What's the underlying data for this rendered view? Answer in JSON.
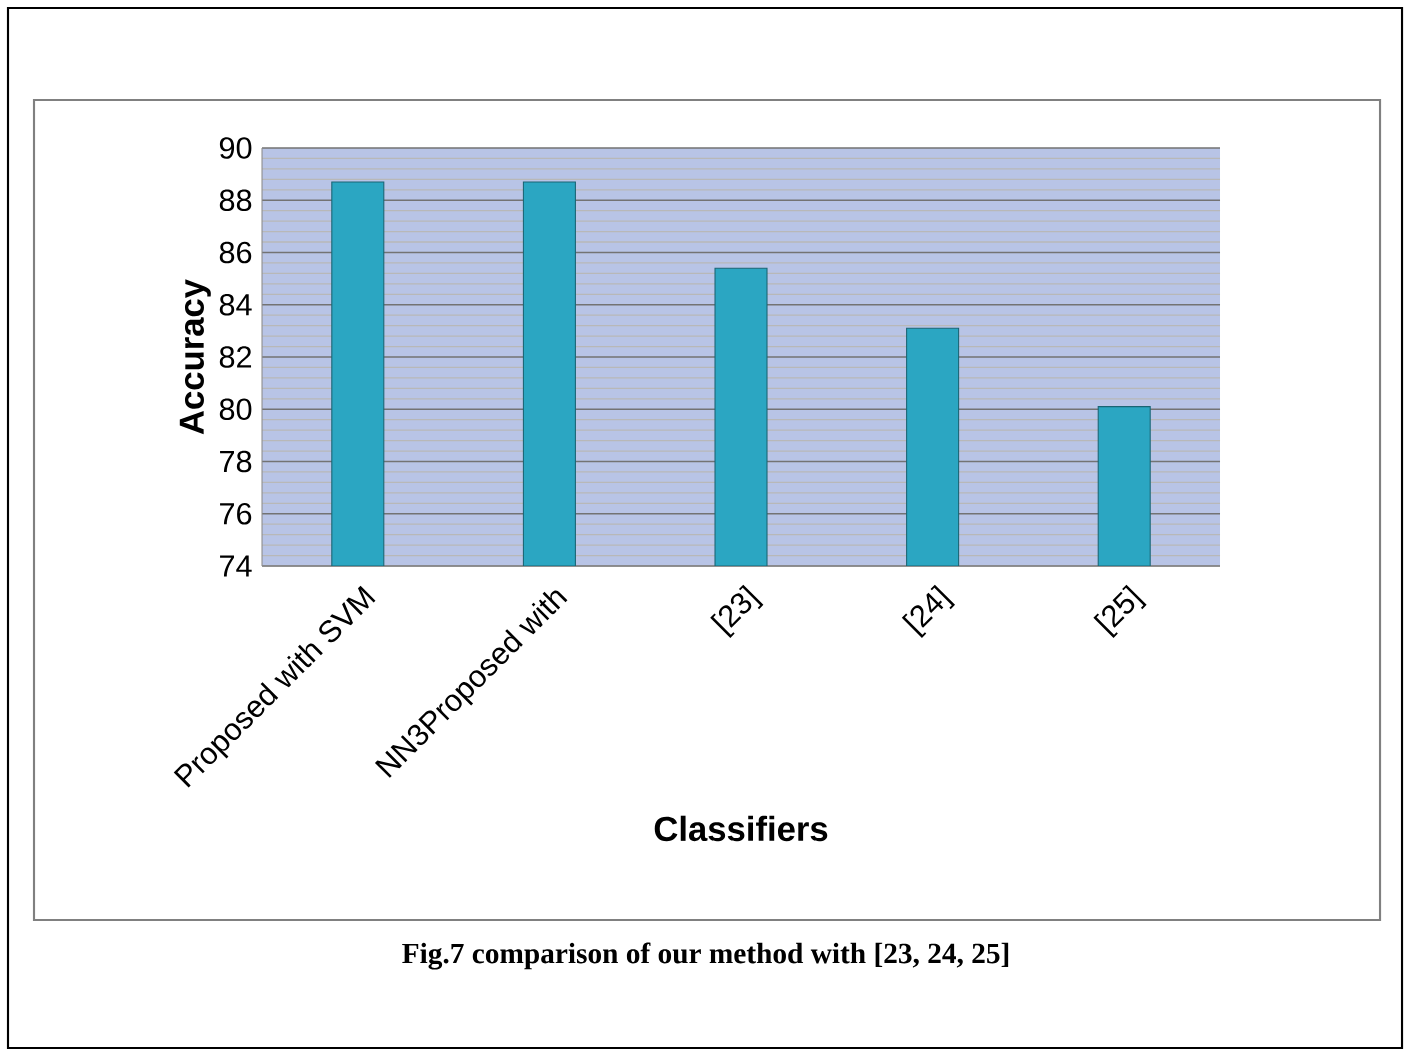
{
  "chart_data": {
    "type": "bar",
    "categories": [
      "Proposed with SVM",
      "NN3Proposed with",
      "[23]",
      "[24]",
      "[25]"
    ],
    "values": [
      88.7,
      88.7,
      85.4,
      83.1,
      80.1
    ],
    "color": "#2ba6c2",
    "xlabel": "Classifiers",
    "ylabel": "Accuracy",
    "ylim": [
      74,
      90
    ],
    "yticks": [
      74,
      76,
      78,
      80,
      82,
      84,
      86,
      88,
      90
    ],
    "grid": "y",
    "annotations": [
      "Fig.7 comparison of our method with [23, 24, 25]"
    ]
  }
}
